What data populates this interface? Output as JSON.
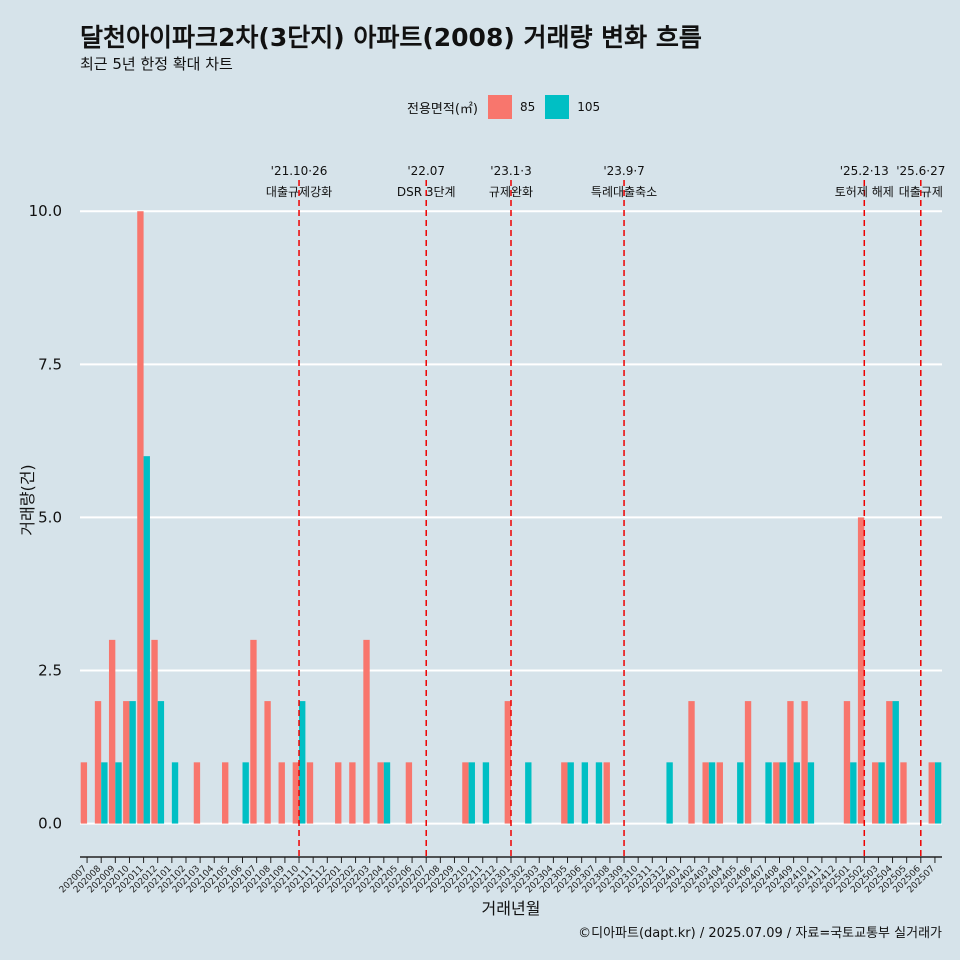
{
  "header": {
    "title": "달천아이파크2차(3단지) 아파트(2008) 거래량 변화 흐름",
    "subtitle": "최근 5년 한정 확대 차트"
  },
  "legend": {
    "title": "전용면적(㎡)",
    "items": [
      {
        "label": "85",
        "color": "#F8766D"
      },
      {
        "label": "105",
        "color": "#00BFC4"
      }
    ]
  },
  "caption": "©디아파트(dapt.kr) / 2025.07.09 / 자료=국토교통부 실거래가",
  "chart_data": {
    "type": "bar",
    "xlabel": "거래년월",
    "ylabel": "거래량(건)",
    "ylim": [
      -0.35,
      11.0
    ],
    "yticks": [
      0.0,
      2.5,
      5.0,
      7.5,
      10.0
    ],
    "ytick_labels": [
      "0.0",
      "2.5",
      "5.0",
      "7.5",
      "10.0"
    ],
    "grid": true,
    "legend_position": "top",
    "categories": [
      "202007",
      "202008",
      "202009",
      "202010",
      "202011",
      "202012",
      "202101",
      "202102",
      "202103",
      "202104",
      "202105",
      "202106",
      "202107",
      "202108",
      "202109",
      "202110",
      "202111",
      "202112",
      "202201",
      "202202",
      "202203",
      "202204",
      "202205",
      "202206",
      "202207",
      "202208",
      "202209",
      "202210",
      "202211",
      "202212",
      "202301",
      "202302",
      "202303",
      "202304",
      "202305",
      "202306",
      "202307",
      "202308",
      "202309",
      "202310",
      "202311",
      "202312",
      "202401",
      "202402",
      "202403",
      "202404",
      "202405",
      "202406",
      "202407",
      "202408",
      "202409",
      "202410",
      "202411",
      "202412",
      "202501",
      "202502",
      "202503",
      "202504",
      "202505",
      "202506",
      "202507"
    ],
    "series": [
      {
        "name": "85",
        "color": "#F8766D",
        "values": [
          1,
          2,
          3,
          2,
          10,
          3,
          0,
          0,
          1,
          0,
          1,
          0,
          3,
          2,
          1,
          1,
          1,
          0,
          1,
          1,
          3,
          1,
          0,
          1,
          0,
          0,
          0,
          1,
          0,
          0,
          2,
          0,
          0,
          0,
          1,
          0,
          0,
          1,
          0,
          0,
          0,
          0,
          0,
          2,
          1,
          1,
          0,
          2,
          0,
          1,
          2,
          2,
          0,
          0,
          2,
          5,
          1,
          2,
          1,
          0,
          1
        ]
      },
      {
        "name": "105",
        "color": "#00BFC4",
        "values": [
          0,
          1,
          1,
          2,
          6,
          2,
          1,
          0,
          0,
          0,
          0,
          1,
          0,
          0,
          0,
          2,
          0,
          0,
          0,
          0,
          0,
          1,
          0,
          0,
          0,
          0,
          0,
          1,
          1,
          0,
          0,
          1,
          0,
          0,
          1,
          1,
          1,
          0,
          0,
          0,
          0,
          1,
          0,
          0,
          1,
          0,
          1,
          0,
          1,
          1,
          1,
          1,
          0,
          0,
          1,
          0,
          1,
          2,
          0,
          0,
          1
        ]
      }
    ],
    "events": [
      {
        "date": "'21.10·26",
        "label": "대출규제강화",
        "position": 15.5
      },
      {
        "date": "'22.07",
        "label": "DSR 3단계",
        "position": 24.5
      },
      {
        "date": "'23.1·3",
        "label": "규제완화",
        "position": 30.5
      },
      {
        "date": "'23.9·7",
        "label": "특례대출축소",
        "position": 38.5
      },
      {
        "date": "'25.2·13",
        "label": "토허제 해제",
        "position": 55.5
      },
      {
        "date": "'25.6·27",
        "label": "대출규제",
        "position": 59.5
      }
    ]
  }
}
